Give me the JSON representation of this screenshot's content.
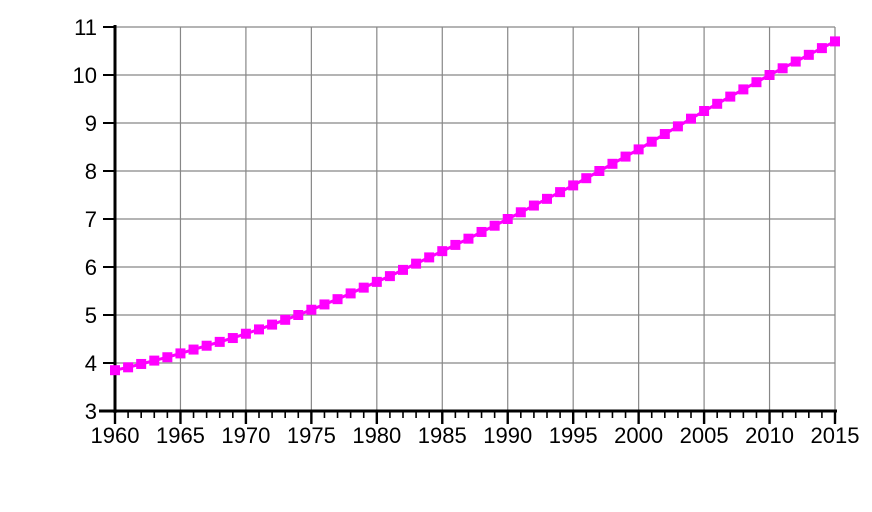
{
  "chart_data": {
    "type": "line",
    "title": "",
    "xlabel": "",
    "ylabel": "",
    "xlim": [
      1960,
      2015
    ],
    "ylim": [
      3,
      11
    ],
    "grid": "on",
    "legend": "none",
    "x_major_ticks": [
      1960,
      1965,
      1970,
      1975,
      1980,
      1985,
      1990,
      1995,
      2000,
      2005,
      2010,
      2015
    ],
    "x_minor_tick_step_years": 1,
    "y_ticks": [
      3,
      4,
      5,
      6,
      7,
      8,
      9,
      10,
      11
    ],
    "x": [
      1960,
      1961,
      1962,
      1963,
      1964,
      1965,
      1966,
      1967,
      1968,
      1969,
      1970,
      1971,
      1972,
      1973,
      1974,
      1975,
      1976,
      1977,
      1978,
      1979,
      1980,
      1981,
      1982,
      1983,
      1984,
      1985,
      1986,
      1987,
      1988,
      1989,
      1990,
      1991,
      1992,
      1993,
      1994,
      1995,
      1996,
      1997,
      1998,
      1999,
      2000,
      2001,
      2002,
      2003,
      2004,
      2005,
      2006,
      2007,
      2008,
      2009,
      2010,
      2011,
      2012,
      2013,
      2014,
      2015
    ],
    "series": [
      {
        "name": "magenta-square-series",
        "marker": "square",
        "color": "#FF00FF",
        "values": [
          3.85,
          3.91,
          3.98,
          4.05,
          4.12,
          4.2,
          4.28,
          4.36,
          4.44,
          4.52,
          4.61,
          4.7,
          4.8,
          4.9,
          5.0,
          5.11,
          5.22,
          5.33,
          5.45,
          5.57,
          5.69,
          5.81,
          5.94,
          6.07,
          6.2,
          6.33,
          6.46,
          6.59,
          6.73,
          6.86,
          7.0,
          7.14,
          7.28,
          7.42,
          7.56,
          7.7,
          7.85,
          8.0,
          8.15,
          8.3,
          8.45,
          8.61,
          8.77,
          8.93,
          9.09,
          9.25,
          9.4,
          9.55,
          9.7,
          9.85,
          10.0,
          10.14,
          10.28,
          10.42,
          10.56,
          10.7
        ]
      }
    ],
    "colors": {
      "marker": "#FF00FF",
      "line": "#FF00FF",
      "grid": "#878787",
      "axis": "#000000",
      "text": "#000000",
      "background": "#FFFFFF"
    }
  }
}
